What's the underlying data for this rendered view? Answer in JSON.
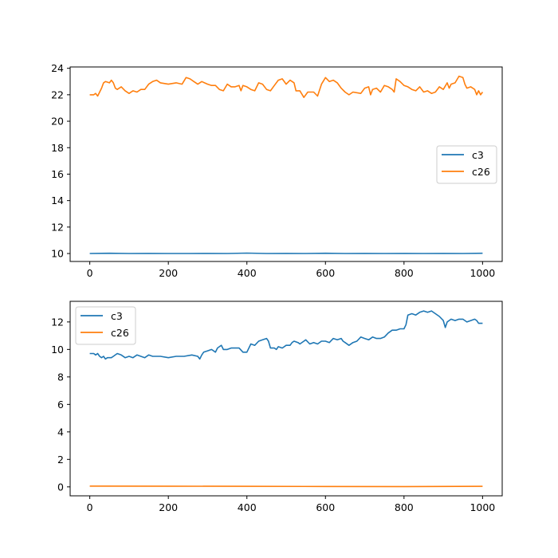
{
  "chart_data": [
    {
      "type": "line",
      "title": "",
      "xlabel": "",
      "ylabel": "",
      "xlim": [
        -50,
        1050
      ],
      "ylim": [
        9.4,
        24.1
      ],
      "xticks": [
        0,
        200,
        400,
        600,
        800,
        1000
      ],
      "yticks": [
        10,
        12,
        14,
        16,
        18,
        20,
        22,
        24
      ],
      "grid": false,
      "legend": "center-right",
      "series": [
        {
          "name": "c3",
          "color": "#1f77b4",
          "points": [
            [
              0,
              10.0
            ],
            [
              50,
              10.02
            ],
            [
              100,
              10.0
            ],
            [
              150,
              10.01
            ],
            [
              200,
              10.0
            ],
            [
              250,
              10.0
            ],
            [
              300,
              10.01
            ],
            [
              350,
              10.0
            ],
            [
              400,
              10.03
            ],
            [
              450,
              10.0
            ],
            [
              500,
              10.01
            ],
            [
              550,
              10.0
            ],
            [
              600,
              10.02
            ],
            [
              650,
              10.0
            ],
            [
              700,
              10.01
            ],
            [
              750,
              10.0
            ],
            [
              800,
              10.01
            ],
            [
              850,
              10.0
            ],
            [
              900,
              10.01
            ],
            [
              950,
              10.0
            ],
            [
              1000,
              10.02
            ]
          ]
        },
        {
          "name": "c26",
          "color": "#ff7f0e",
          "points": [
            [
              0,
              22.0
            ],
            [
              10,
              22.0
            ],
            [
              15,
              22.1
            ],
            [
              20,
              21.9
            ],
            [
              25,
              22.2
            ],
            [
              30,
              22.5
            ],
            [
              35,
              22.9
            ],
            [
              40,
              23.0
            ],
            [
              50,
              22.9
            ],
            [
              55,
              23.1
            ],
            [
              60,
              22.9
            ],
            [
              65,
              22.5
            ],
            [
              70,
              22.4
            ],
            [
              80,
              22.6
            ],
            [
              90,
              22.3
            ],
            [
              100,
              22.1
            ],
            [
              110,
              22.3
            ],
            [
              120,
              22.2
            ],
            [
              130,
              22.4
            ],
            [
              140,
              22.4
            ],
            [
              150,
              22.8
            ],
            [
              160,
              23.0
            ],
            [
              170,
              23.1
            ],
            [
              180,
              22.9
            ],
            [
              200,
              22.8
            ],
            [
              220,
              22.9
            ],
            [
              235,
              22.8
            ],
            [
              245,
              23.3
            ],
            [
              255,
              23.2
            ],
            [
              265,
              23.0
            ],
            [
              275,
              22.8
            ],
            [
              285,
              23.0
            ],
            [
              300,
              22.8
            ],
            [
              310,
              22.7
            ],
            [
              320,
              22.7
            ],
            [
              330,
              22.4
            ],
            [
              340,
              22.3
            ],
            [
              350,
              22.8
            ],
            [
              360,
              22.6
            ],
            [
              370,
              22.6
            ],
            [
              380,
              22.7
            ],
            [
              385,
              22.3
            ],
            [
              390,
              22.7
            ],
            [
              400,
              22.6
            ],
            [
              410,
              22.4
            ],
            [
              420,
              22.3
            ],
            [
              430,
              22.9
            ],
            [
              440,
              22.8
            ],
            [
              450,
              22.4
            ],
            [
              460,
              22.3
            ],
            [
              470,
              22.7
            ],
            [
              480,
              23.1
            ],
            [
              490,
              23.2
            ],
            [
              500,
              22.8
            ],
            [
              510,
              23.1
            ],
            [
              520,
              22.9
            ],
            [
              525,
              22.3
            ],
            [
              535,
              22.3
            ],
            [
              545,
              21.8
            ],
            [
              555,
              22.2
            ],
            [
              570,
              22.2
            ],
            [
              580,
              21.9
            ],
            [
              590,
              22.8
            ],
            [
              600,
              23.3
            ],
            [
              610,
              23.0
            ],
            [
              620,
              23.1
            ],
            [
              630,
              22.9
            ],
            [
              640,
              22.5
            ],
            [
              650,
              22.2
            ],
            [
              660,
              22.0
            ],
            [
              670,
              22.2
            ],
            [
              690,
              22.1
            ],
            [
              700,
              22.5
            ],
            [
              710,
              22.6
            ],
            [
              715,
              22.0
            ],
            [
              720,
              22.4
            ],
            [
              730,
              22.5
            ],
            [
              740,
              22.2
            ],
            [
              750,
              22.7
            ],
            [
              760,
              22.6
            ],
            [
              770,
              22.4
            ],
            [
              775,
              22.2
            ],
            [
              780,
              23.2
            ],
            [
              790,
              23.0
            ],
            [
              800,
              22.7
            ],
            [
              810,
              22.6
            ],
            [
              820,
              22.4
            ],
            [
              830,
              22.3
            ],
            [
              840,
              22.6
            ],
            [
              850,
              22.2
            ],
            [
              860,
              22.3
            ],
            [
              870,
              22.1
            ],
            [
              880,
              22.2
            ],
            [
              890,
              22.6
            ],
            [
              900,
              22.4
            ],
            [
              910,
              22.9
            ],
            [
              915,
              22.5
            ],
            [
              920,
              22.8
            ],
            [
              930,
              22.9
            ],
            [
              940,
              23.4
            ],
            [
              950,
              23.3
            ],
            [
              955,
              22.8
            ],
            [
              960,
              22.5
            ],
            [
              970,
              22.6
            ],
            [
              980,
              22.4
            ],
            [
              985,
              22.0
            ],
            [
              990,
              22.3
            ],
            [
              995,
              22.0
            ],
            [
              1000,
              22.2
            ]
          ]
        }
      ]
    },
    {
      "type": "line",
      "title": "",
      "xlabel": "",
      "ylabel": "",
      "xlim": [
        -50,
        1050
      ],
      "ylim": [
        -0.65,
        13.5
      ],
      "xticks": [
        0,
        200,
        400,
        600,
        800,
        1000
      ],
      "yticks": [
        0,
        2,
        4,
        6,
        8,
        10,
        12
      ],
      "grid": false,
      "legend": "top-left",
      "series": [
        {
          "name": "c3",
          "color": "#1f77b4",
          "points": [
            [
              0,
              9.7
            ],
            [
              10,
              9.7
            ],
            [
              15,
              9.6
            ],
            [
              20,
              9.7
            ],
            [
              25,
              9.5
            ],
            [
              30,
              9.4
            ],
            [
              35,
              9.5
            ],
            [
              40,
              9.3
            ],
            [
              45,
              9.4
            ],
            [
              55,
              9.4
            ],
            [
              60,
              9.5
            ],
            [
              70,
              9.7
            ],
            [
              80,
              9.6
            ],
            [
              90,
              9.4
            ],
            [
              100,
              9.5
            ],
            [
              110,
              9.4
            ],
            [
              120,
              9.6
            ],
            [
              130,
              9.5
            ],
            [
              140,
              9.4
            ],
            [
              150,
              9.6
            ],
            [
              160,
              9.5
            ],
            [
              180,
              9.5
            ],
            [
              200,
              9.4
            ],
            [
              220,
              9.5
            ],
            [
              240,
              9.5
            ],
            [
              260,
              9.6
            ],
            [
              275,
              9.5
            ],
            [
              280,
              9.3
            ],
            [
              285,
              9.6
            ],
            [
              290,
              9.8
            ],
            [
              300,
              9.9
            ],
            [
              310,
              10.0
            ],
            [
              320,
              9.8
            ],
            [
              325,
              10.1
            ],
            [
              330,
              10.2
            ],
            [
              335,
              10.3
            ],
            [
              340,
              10.0
            ],
            [
              350,
              10.0
            ],
            [
              360,
              10.1
            ],
            [
              380,
              10.1
            ],
            [
              390,
              9.8
            ],
            [
              400,
              9.8
            ],
            [
              410,
              10.4
            ],
            [
              420,
              10.3
            ],
            [
              430,
              10.6
            ],
            [
              440,
              10.7
            ],
            [
              450,
              10.8
            ],
            [
              455,
              10.6
            ],
            [
              460,
              10.1
            ],
            [
              470,
              10.1
            ],
            [
              475,
              10.0
            ],
            [
              480,
              10.2
            ],
            [
              490,
              10.1
            ],
            [
              500,
              10.3
            ],
            [
              510,
              10.3
            ],
            [
              515,
              10.5
            ],
            [
              520,
              10.6
            ],
            [
              530,
              10.5
            ],
            [
              535,
              10.4
            ],
            [
              545,
              10.6
            ],
            [
              550,
              10.7
            ],
            [
              560,
              10.4
            ],
            [
              570,
              10.5
            ],
            [
              580,
              10.4
            ],
            [
              590,
              10.6
            ],
            [
              600,
              10.6
            ],
            [
              610,
              10.5
            ],
            [
              620,
              10.8
            ],
            [
              630,
              10.7
            ],
            [
              640,
              10.8
            ],
            [
              645,
              10.6
            ],
            [
              650,
              10.5
            ],
            [
              660,
              10.3
            ],
            [
              670,
              10.5
            ],
            [
              680,
              10.6
            ],
            [
              690,
              10.9
            ],
            [
              700,
              10.8
            ],
            [
              710,
              10.7
            ],
            [
              720,
              10.9
            ],
            [
              730,
              10.8
            ],
            [
              740,
              10.8
            ],
            [
              750,
              10.9
            ],
            [
              760,
              11.2
            ],
            [
              770,
              11.4
            ],
            [
              780,
              11.4
            ],
            [
              790,
              11.5
            ],
            [
              800,
              11.5
            ],
            [
              805,
              11.8
            ],
            [
              810,
              12.5
            ],
            [
              820,
              12.6
            ],
            [
              830,
              12.5
            ],
            [
              840,
              12.7
            ],
            [
              850,
              12.8
            ],
            [
              860,
              12.7
            ],
            [
              870,
              12.8
            ],
            [
              880,
              12.6
            ],
            [
              890,
              12.4
            ],
            [
              900,
              12.1
            ],
            [
              905,
              11.6
            ],
            [
              910,
              12.0
            ],
            [
              920,
              12.2
            ],
            [
              930,
              12.1
            ],
            [
              940,
              12.2
            ],
            [
              950,
              12.2
            ],
            [
              960,
              12.0
            ],
            [
              970,
              12.1
            ],
            [
              980,
              12.2
            ],
            [
              985,
              12.1
            ],
            [
              990,
              11.9
            ],
            [
              1000,
              11.9
            ]
          ]
        },
        {
          "name": "c26",
          "color": "#ff7f0e",
          "points": [
            [
              0,
              0.06
            ],
            [
              200,
              0.05
            ],
            [
              400,
              0.04
            ],
            [
              600,
              0.03
            ],
            [
              800,
              0.02
            ],
            [
              1000,
              0.04
            ]
          ]
        }
      ]
    }
  ]
}
